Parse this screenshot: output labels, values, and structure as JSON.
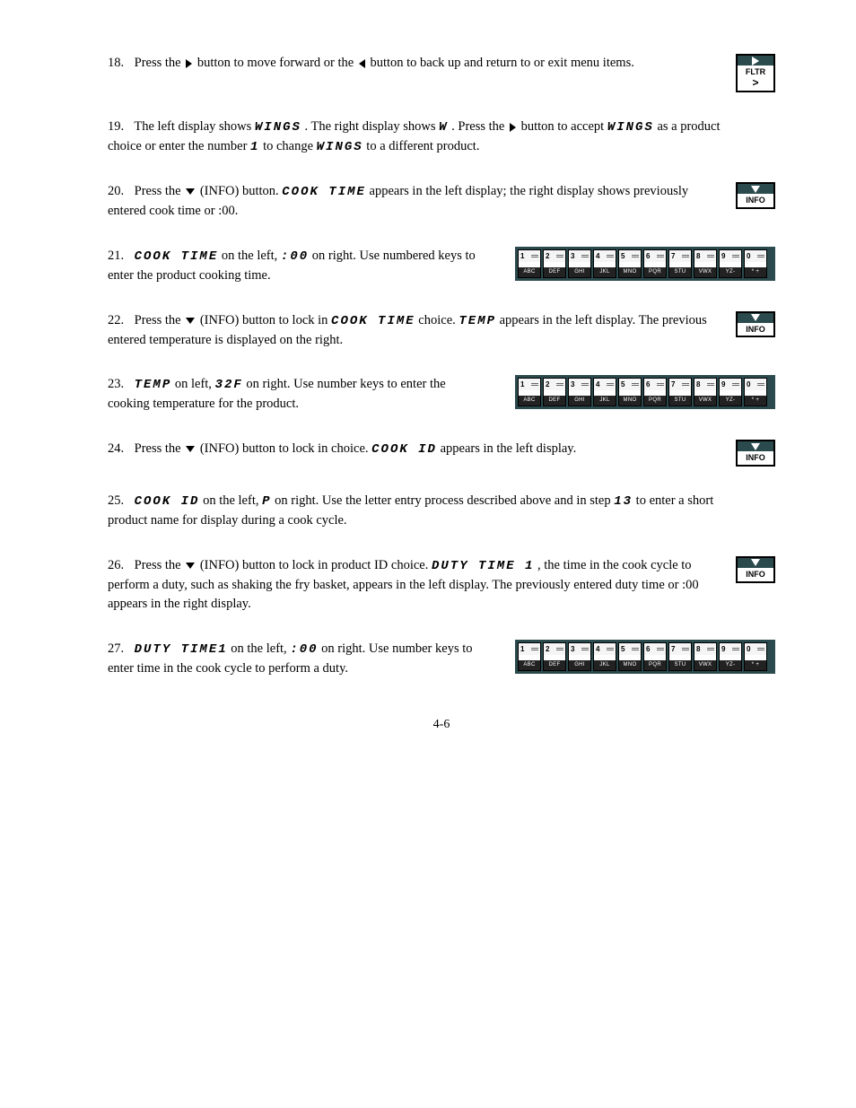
{
  "steps": {
    "s18": {
      "num": "18.",
      "pre": "Press the ",
      "post1": " button to move forward or the ",
      "post2": " button to back up and return to or exit menu items."
    },
    "s19": {
      "num": "19.",
      "text_a": "The left display shows ",
      "prod": "WINGS",
      "text_b": ". The right display shows ",
      "letter": "W",
      "text_c": ". Press the ",
      "text_d": " button to accept ",
      "prod2": "WINGS",
      "text_e": " as a product choice or enter the number ",
      "num1": "1",
      "text_f": " to change ",
      "prod3": "WINGS",
      "text_g": " to a different product."
    },
    "s20": {
      "num": "20.",
      "text": "Press the ",
      "text2": " (INFO) button. ",
      "ct": "COOK TIME",
      "text3": " appears in the left display; the right display shows previously entered cook time or :00."
    },
    "s21": {
      "num": "21.",
      "left": "COOK TIME",
      "text1": " on the left, ",
      "right": ":00",
      "text2": " on right. Use numbered keys to enter the product cooking time."
    },
    "s22": {
      "num": "22.",
      "text1": "Press the ",
      "text2": " (INFO) button to lock in ",
      "ct": "COOK  TIME",
      "text3": " choice. ",
      "temp": "TEMP",
      "text4": " appears in the left display. The previous entered temperature is displayed on the right."
    },
    "s23": {
      "num": "23.",
      "left": "TEMP",
      "text1": " on left, ",
      "right": "32F",
      "text2": " on right. Use number keys to enter the cooking temperature for the product."
    },
    "s24": {
      "num": "24.",
      "text1": "Press the ",
      "text2": " (INFO) button to lock in choice. ",
      "cid": "COOK ID",
      "text3": " appears in the left display."
    },
    "s25": {
      "num": "25.",
      "cid": "COOK ID",
      "text1": " on the left, ",
      "p": "P",
      "text2": " on right. Use the letter entry process described above and in step ",
      "sn": "13",
      "text3": " to enter a short product name for display during a cook cycle."
    },
    "s26": {
      "num": "26.",
      "text1": "Press the ",
      "text2": " (INFO) button to lock in product ID choice. ",
      "dt": "DUTY TIME 1",
      "text3": ", the time in the cook cycle to perform a duty, such as shaking the fry basket, appears in the left display. The previously entered duty time or :00 appears in the right display."
    },
    "s27": {
      "num": "27.",
      "dt": "DUTY TIME1",
      "text1": " on the left, ",
      "right": ":00",
      "text2": " on right. Use number keys to enter time in the cook cycle to perform a duty."
    }
  },
  "buttons": {
    "fltr": "FLTR",
    "info": "INFO"
  },
  "keypad": {
    "nums": [
      "1",
      "2",
      "3",
      "4",
      "5",
      "6",
      "7",
      "8",
      "9",
      "0"
    ],
    "labels": [
      "ABC",
      "DEF",
      "GHI",
      "JKL",
      "MNO",
      "PQR",
      "STU",
      "VWX",
      "YZ-",
      "*  +"
    ]
  },
  "footer": "4-6"
}
